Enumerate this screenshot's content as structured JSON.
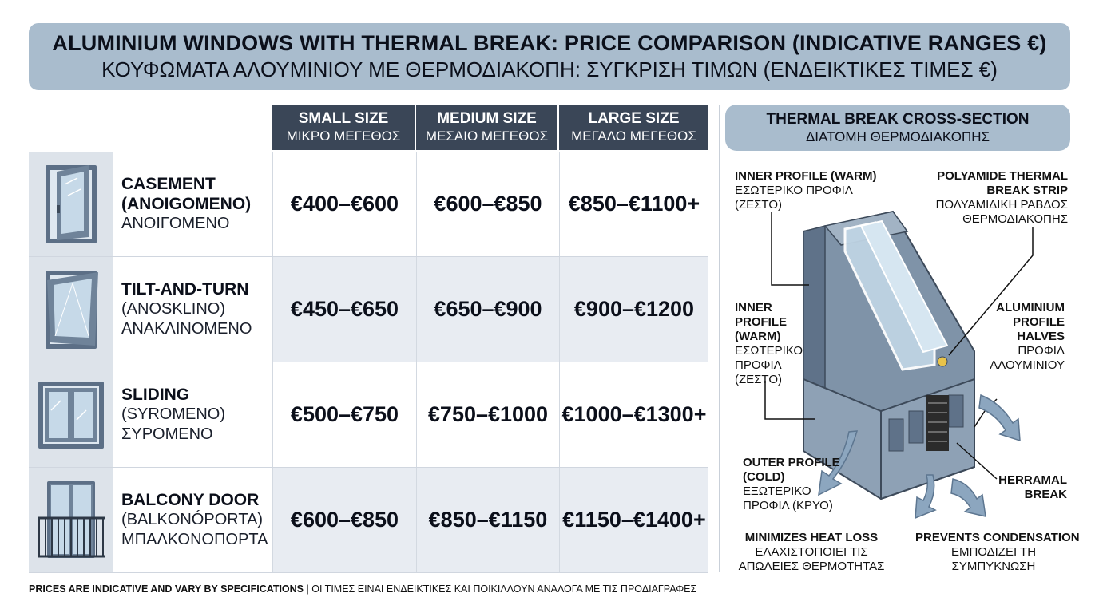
{
  "title": {
    "en": "ALUMINIUM WINDOWS WITH THERMAL BREAK: PRICE COMPARISON (INDICATIVE RANGES €)",
    "el": "ΚΟΥΦΩΜΑΤΑ ΑΛΟΥΜΙΝΙΟΥ ΜΕ ΘΕΡΜΟΔΙΑΚΟΠΗ: ΣΥΓΚΡΙΣΗ ΤΙΜΩΝ (ΕΝΔΕΙΚΤΙΚΕΣ ΤΙΜΕΣ €)"
  },
  "columns": [
    {
      "en": "SMALL SIZE",
      "el": "ΜΙΚΡΟ ΜΕΓΕΘΟΣ"
    },
    {
      "en": "MEDIUM SIZE",
      "el": "ΜΕΣΑΙΟ ΜΕΓΕΘΟΣ"
    },
    {
      "en": "LARGE SIZE",
      "el": "ΜΕΓΑΛΟ ΜΕΓΕΘΟΣ"
    }
  ],
  "rows": [
    {
      "icon": "casement-window-icon",
      "lines": [
        "CASEMENT",
        "(ANOIGOMENO)",
        "ΑΝΟΙΓΟΜΕΝΟ"
      ],
      "prices": [
        "€400–€600",
        "€600–€850",
        "€850–€1100+"
      ]
    },
    {
      "icon": "tilt-turn-window-icon",
      "lines": [
        "TILT-AND-TURN",
        "(ANOSKLINO)",
        "ΑΝΑΚΛΙΝΟΜΕΝΟ"
      ],
      "prices": [
        "€450–€650",
        "€650–€900",
        "€900–€1200"
      ]
    },
    {
      "icon": "sliding-window-icon",
      "lines": [
        "SLIDING",
        "(SYROMENO)",
        "ΣΥΡΟΜΕΝΟ"
      ],
      "prices": [
        "€500–€750",
        "€750–€1000",
        "€1000–€1300+"
      ]
    },
    {
      "icon": "balcony-door-icon",
      "lines": [
        "BALCONY DOOR",
        "(BALKONÓPORTA)",
        "ΜΠΑΛΚΟΝΟΠΟΡΤΑ"
      ],
      "prices": [
        "€600–€850",
        "€850–€1150",
        "€1150–€1400+"
      ]
    }
  ],
  "panel": {
    "title_en": "THERMAL BREAK CROSS-SECTION",
    "title_el": "ΔΙΑΤΟΜΗ ΘΕΡΜΟΔΙΑΚΟΠΗΣ",
    "labels": {
      "inner_top": {
        "en": "INNER PROFILE (WARM)",
        "el1": "ΕΣΩΤΕΡΙΚΟ ΠΡΟΦΙΛ",
        "el2": "(ΖΕΣΤΟ)"
      },
      "polyamide": {
        "en1": "POLYAMIDE THERMAL",
        "en2": "BREAK STRIP",
        "el1": "ΠΟΛΥΑΜΙΔΙΚΗ ΡΑΒΔΟΣ",
        "el2": "ΘΕΡΜΟΔΙΑΚΟΠΗΣ"
      },
      "inner_mid": {
        "en1": "INNER",
        "en2": "PROFILE",
        "en3": "(WARM)",
        "el1": "ΕΣΩΤΕΡΙΚΟ",
        "el2": "ΠΡΟΦΙΛ",
        "el3": "(ΖΕΣΤΟ)"
      },
      "halves": {
        "en1": "ALUMINIUM",
        "en2": "PROFILE",
        "en3": "HALVES",
        "el1": "ΠΡΟΦΙΛ",
        "el2": "ΑΛΟΥΜΙΝΙΟΥ"
      },
      "outer": {
        "en1": "OUTER PROFILE",
        "en2": "(COLD)",
        "el1": "ΕΞΩΤΕΡΙΚΟ",
        "el2": "ΠΡΟΦΙΛ (ΚΡΥΟ)"
      },
      "thermal_break": {
        "en1": "HERRAMAL",
        "en2": "BREAK"
      },
      "heat_loss": {
        "en": "MINIMIZES HEAT LOSS",
        "el1": "ΕΛΑΧΙΣΤΟΠΟΙΕΙ ΤΙΣ",
        "el2": "ΑΠΩΛΕΙΕΣ ΘΕΡΜΟΤΗΤΑΣ"
      },
      "condensation": {
        "en": "PREVENTS CONDENSATION",
        "el1": "ΕΜΠΟΔΙΖΕΙ ΤΗ",
        "el2": "ΣΥΜΠΥΚΝΩΣΗ"
      }
    }
  },
  "footer": {
    "en": "PRICES ARE INDICATIVE AND VARY BY SPECIFICATIONS",
    "sep": " | ",
    "el": "ΟΙ ΤΙΜΕΣ ΕΙΝΑΙ ΕΝΔΕΙΚΤΙΚΕΣ ΚΑΙ ΠΟΙΚΙΛΛΟΥΝ ΑΝΑΛΟΓΑ ΜΕ ΤΙΣ ΠΡΟΔΙΑΓΡΑΦΕΣ"
  },
  "colors": {
    "header_dark": "#3a4657",
    "banner": "#a9bccd",
    "profile": "#7f93a8",
    "glass": "#bfd4e4"
  }
}
